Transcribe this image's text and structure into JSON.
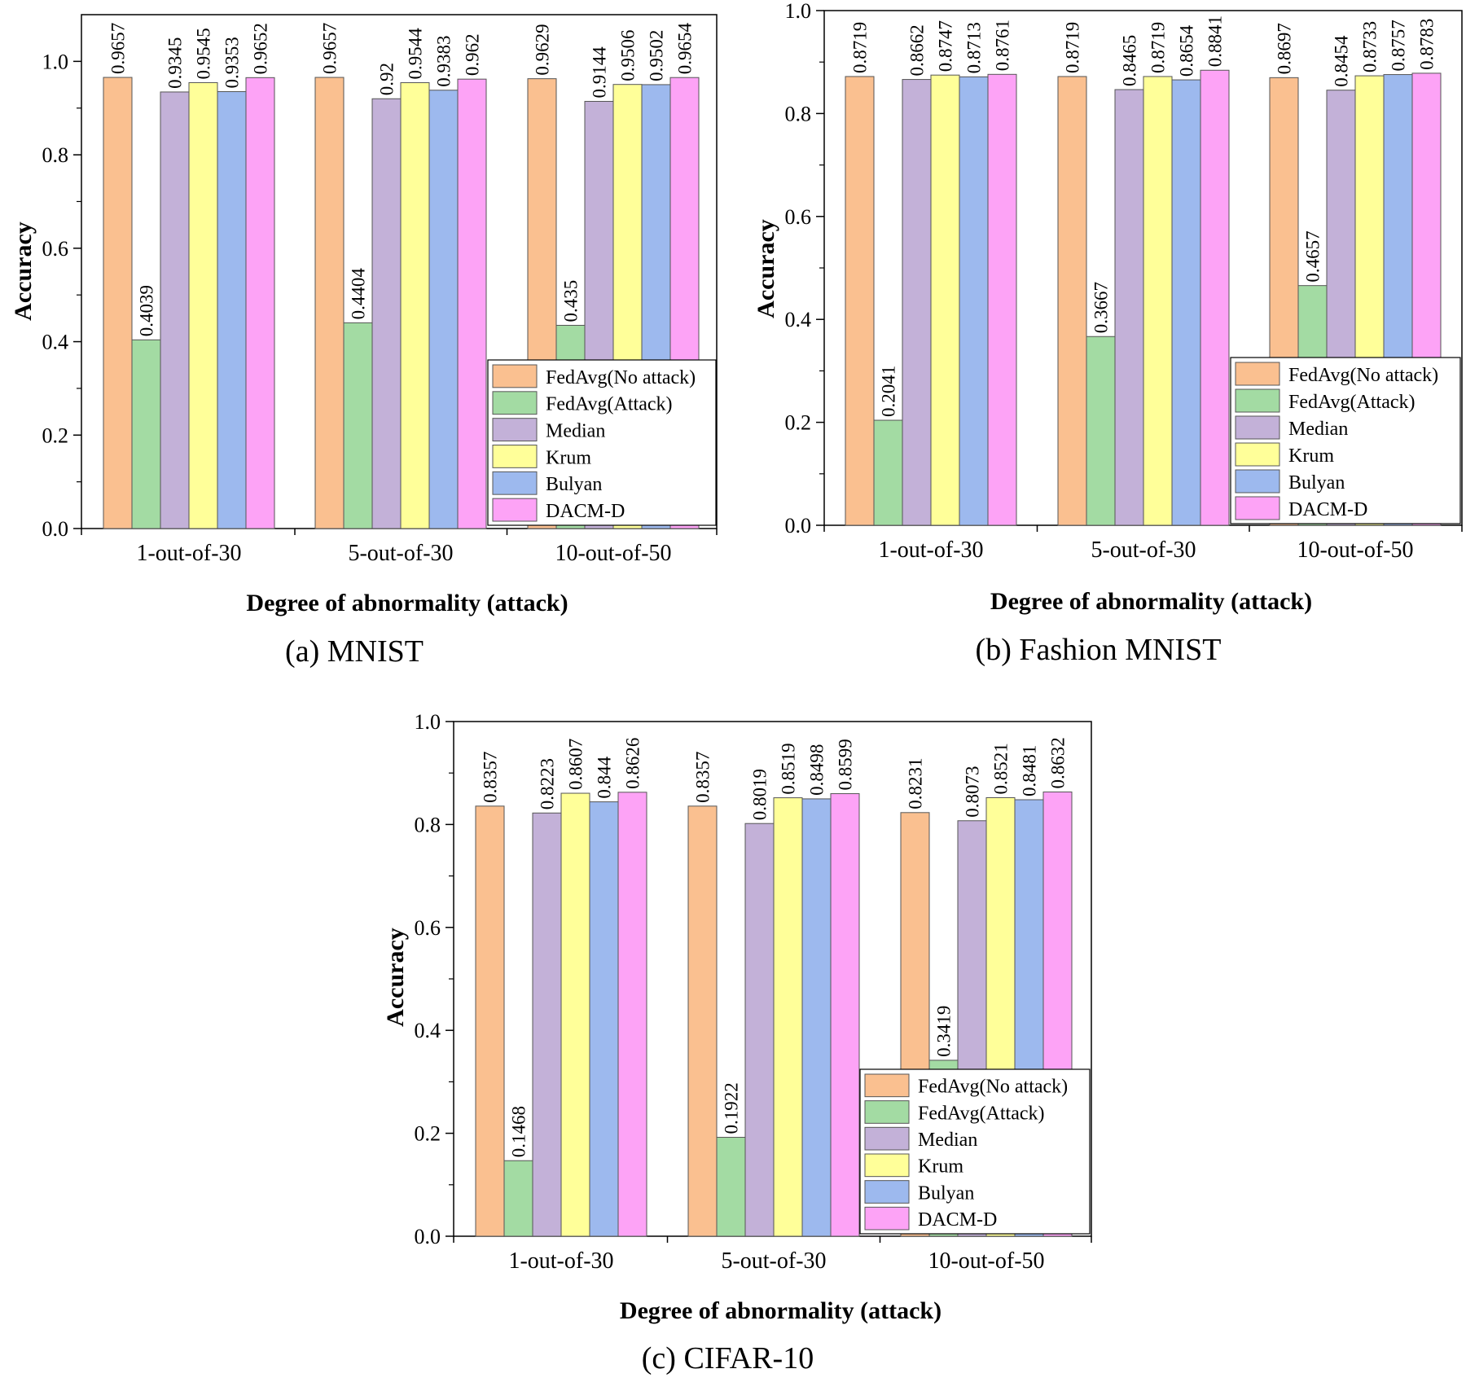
{
  "colors": {
    "FedAvg(No attack)": "#fac090",
    "FedAvg(Attack)": "#a3dba3",
    "Median": "#c3b1d8",
    "Krum": "#ffff99",
    "Bulyan": "#9db9ee",
    "DACM-D": "#fda3f6"
  },
  "chart_data": [
    {
      "type": "bar",
      "caption": "(a)  MNIST",
      "xlabel": "Degree of abnormality (attack)",
      "ylabel": "Accuracy",
      "ylim": [
        0,
        1.1
      ],
      "yticks": [
        "0.0",
        "0.2",
        "0.4",
        "0.6",
        "0.8",
        "1.0"
      ],
      "legend_position": "bottom-right",
      "categories": [
        "1-out-of-30",
        "5-out-of-30",
        "10-out-of-50"
      ],
      "series": [
        {
          "name": "FedAvg(No attack)",
          "values": [
            0.9657,
            0.9657,
            0.9629
          ],
          "labels": [
            "0.9657",
            "0.9657",
            "0.9629"
          ]
        },
        {
          "name": "FedAvg(Attack)",
          "values": [
            0.4039,
            0.4404,
            0.435
          ],
          "labels": [
            "0.4039",
            "0.4404",
            "0.435"
          ]
        },
        {
          "name": "Median",
          "values": [
            0.9345,
            0.92,
            0.9144
          ],
          "labels": [
            "0.9345",
            "0.92",
            "0.9144"
          ]
        },
        {
          "name": "Krum",
          "values": [
            0.9545,
            0.9544,
            0.9506
          ],
          "labels": [
            "0.9545",
            "0.9544",
            "0.9506"
          ]
        },
        {
          "name": "Bulyan",
          "values": [
            0.9353,
            0.9383,
            0.9502
          ],
          "labels": [
            "0.9353",
            "0.9383",
            "0.9502"
          ]
        },
        {
          "name": "DACM-D",
          "values": [
            0.9652,
            0.962,
            0.9654
          ],
          "labels": [
            "0.9652",
            "0.962",
            "0.9654"
          ]
        }
      ]
    },
    {
      "type": "bar",
      "caption": "(b)  Fashion MNIST",
      "xlabel": "Degree of abnormality (attack)",
      "ylabel": "Accuracy",
      "ylim": [
        0,
        1.0
      ],
      "yticks": [
        "0.0",
        "0.2",
        "0.4",
        "0.6",
        "0.8",
        "1.0"
      ],
      "legend_position": "bottom-right",
      "categories": [
        "1-out-of-30",
        "5-out-of-30",
        "10-out-of-50"
      ],
      "series": [
        {
          "name": "FedAvg(No attack)",
          "values": [
            0.8719,
            0.8719,
            0.8697
          ],
          "labels": [
            "0.8719",
            "0.8719",
            "0.8697"
          ]
        },
        {
          "name": "FedAvg(Attack)",
          "values": [
            0.2041,
            0.3667,
            0.4657
          ],
          "labels": [
            "0.2041",
            "0.3667",
            "0.4657"
          ]
        },
        {
          "name": "Median",
          "values": [
            0.8662,
            0.8465,
            0.8454
          ],
          "labels": [
            "0.8662",
            "0.8465",
            "0.8454"
          ]
        },
        {
          "name": "Krum",
          "values": [
            0.8747,
            0.8719,
            0.8733
          ],
          "labels": [
            "0.8747",
            "0.8719",
            "0.8733"
          ]
        },
        {
          "name": "Bulyan",
          "values": [
            0.8713,
            0.8654,
            0.8757
          ],
          "labels": [
            "0.8713",
            "0.8654",
            "0.8757"
          ]
        },
        {
          "name": "DACM-D",
          "values": [
            0.8761,
            0.8841,
            0.8783
          ],
          "labels": [
            "0.8761",
            "0.8841",
            "0.8783"
          ]
        }
      ]
    },
    {
      "type": "bar",
      "caption": "(c)  CIFAR-10",
      "xlabel": "Degree of abnormality (attack)",
      "ylabel": "Accuracy",
      "ylim": [
        0,
        1.0
      ],
      "yticks": [
        "0.0",
        "0.2",
        "0.4",
        "0.6",
        "0.8",
        "1.0"
      ],
      "legend_position": "bottom-right",
      "categories": [
        "1-out-of-30",
        "5-out-of-30",
        "10-out-of-50"
      ],
      "series": [
        {
          "name": "FedAvg(No attack)",
          "values": [
            0.8357,
            0.8357,
            0.8231
          ],
          "labels": [
            "0.8357",
            "0.8357",
            "0.8231"
          ]
        },
        {
          "name": "FedAvg(Attack)",
          "values": [
            0.1468,
            0.1922,
            0.3419
          ],
          "labels": [
            "0.1468",
            "0.1922",
            "0.3419"
          ]
        },
        {
          "name": "Median",
          "values": [
            0.8223,
            0.8019,
            0.8073
          ],
          "labels": [
            "0.8223",
            "0.8019",
            "0.8073"
          ]
        },
        {
          "name": "Krum",
          "values": [
            0.8607,
            0.8519,
            0.8521
          ],
          "labels": [
            "0.8607",
            "0.8519",
            "0.8521"
          ]
        },
        {
          "name": "Bulyan",
          "values": [
            0.844,
            0.8498,
            0.8481
          ],
          "labels": [
            "0.844",
            "0.8498",
            "0.8481"
          ]
        },
        {
          "name": "DACM-D",
          "values": [
            0.8626,
            0.8599,
            0.8632
          ],
          "labels": [
            "0.8626",
            "0.8599",
            "0.8632"
          ]
        }
      ]
    }
  ]
}
